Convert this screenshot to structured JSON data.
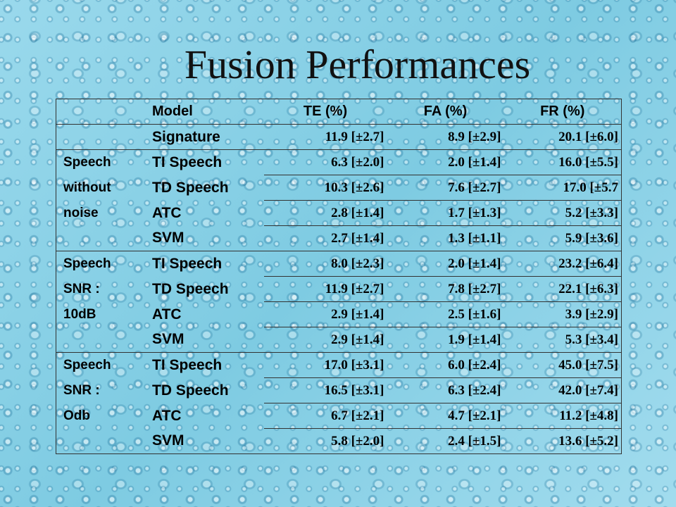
{
  "slide": {
    "title": "Fusion Performances"
  },
  "table": {
    "headers": {
      "model": "Model",
      "te": "TE (%)",
      "fa": "FA (%)",
      "fr": "FR (%)"
    },
    "signature_row": {
      "model": "Signature",
      "te": "11.9 [±2.7]",
      "fa": "8.9 [±2.9]",
      "fr": "20.1 [±6.0]"
    },
    "groups": [
      {
        "label_lines": [
          "Speech",
          "without",
          "noise"
        ],
        "rows": [
          {
            "model": "TI Speech",
            "te": "6.3 [±2.0]",
            "fa": "2.0 [±1.4]",
            "fr": "16.0 [±5.5]"
          },
          {
            "model": "TD Speech",
            "te": "10.3 [±2.6]",
            "fa": "7.6 [±2.7]",
            "fr": "17.0 [±5.7"
          },
          {
            "model": "ATC",
            "te": "2.8 [±1.4]",
            "fa": "1.7 [±1.3]",
            "fr": "5.2 [±3.3]"
          },
          {
            "model": "SVM",
            "te": "2.7 [±1.4]",
            "fa": "1.3 [±1.1]",
            "fr": "5.9 [±3.6]"
          }
        ]
      },
      {
        "label_lines": [
          "Speech",
          "SNR :",
          "10dB"
        ],
        "rows": [
          {
            "model": "TI Speech",
            "te": "8.0 [±2.3]",
            "fa": "2.0 [±1.4]",
            "fr": "23.2 [±6.4]"
          },
          {
            "model": "TD Speech",
            "te": "11.9 [±2.7]",
            "fa": "7.8 [±2.7]",
            "fr": "22.1 [±6.3]"
          },
          {
            "model": "ATC",
            "te": "2.9 [±1.4]",
            "fa": "2.5 [±1.6]",
            "fr": "3.9 [±2.9]"
          },
          {
            "model": "SVM",
            "te": "2.9 [±1.4]",
            "fa": "1.9 [±1.4]",
            "fr": "5.3 [±3.4]"
          }
        ]
      },
      {
        "label_lines": [
          "Speech",
          "SNR :",
          "Odb"
        ],
        "rows": [
          {
            "model": "TI Speech",
            "te": "17.0 [±3.1]",
            "fa": "6.0 [±2.4]",
            "fr": "45.0 [±7.5]"
          },
          {
            "model": "TD Speech",
            "te": "16.5 [±3.1]",
            "fa": "6.3 [±2.4]",
            "fr": "42.0 [±7.4]"
          },
          {
            "model": "ATC",
            "te": "6.7 [±2.1]",
            "fa": "4.7 [±2.1]",
            "fr": "11.2 [±4.8]"
          },
          {
            "model": "SVM",
            "te": "5.8 [±2.0]",
            "fa": "2.4 [±1.5]",
            "fr": "13.6 [±5.2]"
          }
        ]
      }
    ]
  }
}
